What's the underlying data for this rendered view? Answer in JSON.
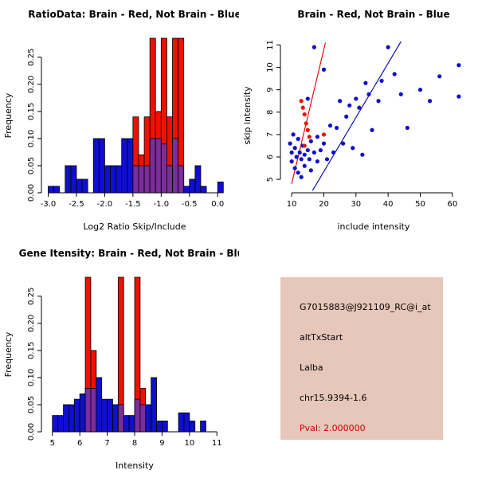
{
  "figure": {
    "background": "#FFFFFF"
  },
  "chart_data": [
    {
      "type": "bar",
      "title": "RatioData: Brain - Red, Not Brain - Blue",
      "xlabel": "Log2 Ratio Skip/Include",
      "ylabel": "Frequency",
      "xlim": [
        -3.12,
        0.18
      ],
      "ylim": [
        0,
        0.285
      ],
      "xticks": [
        -3.0,
        -2.5,
        -2.0,
        -1.5,
        -1.0,
        -0.5,
        0.0
      ],
      "xtick_labels": [
        "-3.0",
        "-2.5",
        "-2.0",
        "-1.5",
        "-1.0",
        "-0.5",
        "0.0"
      ],
      "yticks": [
        0,
        0.05,
        0.1,
        0.15,
        0.2,
        0.25
      ],
      "ytick_labels": [
        "0.00",
        "0.05",
        "0.10",
        "0.15",
        "0.20",
        "0.25"
      ],
      "bin_width": 0.1,
      "legend_note": "Brain = red, Not Brain = blue, overlap = purple",
      "blue_bins": [
        [
          -3.0,
          0.012
        ],
        [
          -2.9,
          0.012
        ],
        [
          -2.7,
          0.05
        ],
        [
          -2.6,
          0.05
        ],
        [
          -2.5,
          0.025
        ],
        [
          -2.4,
          0.025
        ],
        [
          -2.2,
          0.1
        ],
        [
          -2.1,
          0.1
        ],
        [
          -2.0,
          0.05
        ],
        [
          -1.9,
          0.05
        ],
        [
          -1.8,
          0.05
        ],
        [
          -1.7,
          0.1
        ],
        [
          -1.6,
          0.1
        ],
        [
          -1.5,
          0.05
        ],
        [
          -1.4,
          0.05
        ],
        [
          -1.3,
          0.05
        ],
        [
          -1.2,
          0.1
        ],
        [
          -1.1,
          0.1
        ],
        [
          -1.0,
          0.09
        ],
        [
          -0.9,
          0.05
        ],
        [
          -0.8,
          0.1
        ],
        [
          -0.7,
          0.05
        ],
        [
          -0.6,
          0.012
        ],
        [
          -0.5,
          0.025
        ],
        [
          -0.4,
          0.05
        ],
        [
          -0.3,
          0.012
        ],
        [
          0.0,
          0.02
        ]
      ],
      "red_bins": [
        [
          -1.5,
          0.14
        ],
        [
          -1.4,
          0.07
        ],
        [
          -1.3,
          0.14
        ],
        [
          -1.2,
          0.285
        ],
        [
          -1.1,
          0.15
        ],
        [
          -1.0,
          0.285
        ],
        [
          -0.9,
          0.14
        ],
        [
          -0.8,
          0.285
        ],
        [
          -0.7,
          0.285
        ]
      ],
      "colors": {
        "blue": "#0F0FCD",
        "red": "#EE1100",
        "overlap": "#7B2D9B"
      }
    },
    {
      "type": "scatter",
      "title": "Brain - Red, Not Brain - Blue",
      "xlabel": "include intensity",
      "ylabel": "skip intensity",
      "xlim": [
        6.5,
        64.5
      ],
      "ylim": [
        4.4,
        11.3
      ],
      "xticks": [
        10,
        20,
        30,
        40,
        50,
        60
      ],
      "xtick_labels": [
        "10",
        "20",
        "30",
        "40",
        "50",
        "60"
      ],
      "yticks": [
        5,
        6,
        7,
        8,
        9,
        10,
        11
      ],
      "ytick_labels": [
        "5",
        "6",
        "7",
        "8",
        "9",
        "10",
        "11"
      ],
      "points": [
        [
          9.5,
          6.6,
          "b"
        ],
        [
          10,
          6.2,
          "b"
        ],
        [
          10,
          5.8,
          "b"
        ],
        [
          10.5,
          7.0,
          "b"
        ],
        [
          11,
          6.4,
          "b"
        ],
        [
          11,
          5.5,
          "b"
        ],
        [
          11.5,
          6.0,
          "b"
        ],
        [
          12,
          6.8,
          "b"
        ],
        [
          12,
          5.3,
          "b"
        ],
        [
          12.5,
          6.2,
          "b"
        ],
        [
          13,
          5.9,
          "b"
        ],
        [
          13,
          5.1,
          "b"
        ],
        [
          13.5,
          6.5,
          "b"
        ],
        [
          14,
          6.1,
          "b"
        ],
        [
          14,
          5.6,
          "b"
        ],
        [
          15,
          8.6,
          "b"
        ],
        [
          15,
          6.3,
          "b"
        ],
        [
          15.5,
          5.9,
          "b"
        ],
        [
          16,
          6.7,
          "b"
        ],
        [
          16,
          5.4,
          "b"
        ],
        [
          17,
          10.9,
          "b"
        ],
        [
          17,
          6.2,
          "b"
        ],
        [
          18,
          6.9,
          "b"
        ],
        [
          18,
          5.8,
          "b"
        ],
        [
          19,
          6.3,
          "b"
        ],
        [
          20,
          9.9,
          "b"
        ],
        [
          20,
          6.6,
          "b"
        ],
        [
          21,
          5.9,
          "b"
        ],
        [
          22,
          7.4,
          "b"
        ],
        [
          23,
          6.2,
          "b"
        ],
        [
          24,
          7.3,
          "b"
        ],
        [
          25,
          8.5,
          "b"
        ],
        [
          26,
          6.6,
          "b"
        ],
        [
          27,
          7.8,
          "b"
        ],
        [
          28,
          8.3,
          "b"
        ],
        [
          29,
          6.4,
          "b"
        ],
        [
          30,
          8.6,
          "b"
        ],
        [
          31,
          8.2,
          "b"
        ],
        [
          32,
          6.1,
          "b"
        ],
        [
          33,
          9.3,
          "b"
        ],
        [
          34,
          8.8,
          "b"
        ],
        [
          35,
          7.2,
          "b"
        ],
        [
          37,
          8.5,
          "b"
        ],
        [
          38,
          9.4,
          "b"
        ],
        [
          40,
          10.9,
          "b"
        ],
        [
          42,
          9.7,
          "b"
        ],
        [
          44,
          8.8,
          "b"
        ],
        [
          46,
          7.3,
          "b"
        ],
        [
          50,
          9.0,
          "b"
        ],
        [
          53,
          8.5,
          "b"
        ],
        [
          56,
          9.6,
          "b"
        ],
        [
          62,
          10.1,
          "b"
        ],
        [
          62,
          8.7,
          "b"
        ],
        [
          13,
          8.5,
          "r"
        ],
        [
          13.5,
          8.2,
          "r"
        ],
        [
          14,
          7.9,
          "r"
        ],
        [
          14.5,
          7.5,
          "r"
        ],
        [
          15,
          7.2,
          "r"
        ],
        [
          15.5,
          6.9,
          "r"
        ],
        [
          14,
          6.5,
          "r"
        ],
        [
          20,
          7.0,
          "r"
        ]
      ],
      "lines": [
        {
          "x": [
            10,
            20.5
          ],
          "y": [
            4.8,
            11.1
          ],
          "color": "#D40000"
        },
        {
          "x": [
            16.5,
            44
          ],
          "y": [
            4.5,
            11.15
          ],
          "color": "#0000B8"
        }
      ],
      "colors": {
        "blue": "#0F0FCD",
        "red": "#EE1100"
      }
    },
    {
      "type": "bar",
      "title": "Gene Itensity: Brain - Red, Not Brain - Blue",
      "xlabel": "Intensity",
      "ylabel": "Frequency",
      "xlim": [
        4.6,
        11.4
      ],
      "ylim": [
        0,
        0.285
      ],
      "xticks": [
        5,
        6,
        7,
        8,
        9,
        10,
        11
      ],
      "xtick_labels": [
        "5",
        "6",
        "7",
        "8",
        "9",
        "10",
        "11"
      ],
      "yticks": [
        0,
        0.05,
        0.1,
        0.15,
        0.2,
        0.25
      ],
      "ytick_labels": [
        "0.00",
        "0.05",
        "0.10",
        "0.15",
        "0.20",
        "0.25"
      ],
      "bin_width": 0.2,
      "legend_note": "Brain = red, Not Brain = blue, overlap = purple",
      "blue_bins": [
        [
          5.0,
          0.03
        ],
        [
          5.2,
          0.03
        ],
        [
          5.4,
          0.05
        ],
        [
          5.6,
          0.05
        ],
        [
          5.8,
          0.06
        ],
        [
          6.0,
          0.07
        ],
        [
          6.2,
          0.08
        ],
        [
          6.4,
          0.08
        ],
        [
          6.6,
          0.1
        ],
        [
          6.8,
          0.06
        ],
        [
          7.0,
          0.06
        ],
        [
          7.2,
          0.05
        ],
        [
          7.4,
          0.05
        ],
        [
          7.6,
          0.03
        ],
        [
          7.8,
          0.03
        ],
        [
          8.0,
          0.06
        ],
        [
          8.2,
          0.05
        ],
        [
          8.4,
          0.05
        ],
        [
          8.6,
          0.1
        ],
        [
          8.8,
          0.02
        ],
        [
          9.0,
          0.02
        ],
        [
          9.6,
          0.035
        ],
        [
          9.8,
          0.035
        ],
        [
          10.0,
          0.02
        ],
        [
          10.4,
          0.02
        ]
      ],
      "red_bins": [
        [
          6.2,
          0.285
        ],
        [
          6.4,
          0.15
        ],
        [
          7.4,
          0.285
        ],
        [
          8.0,
          0.285
        ],
        [
          8.2,
          0.08
        ]
      ],
      "colors": {
        "blue": "#0F0FCD",
        "red": "#EE1100",
        "overlap": "#7B2D9B"
      }
    }
  ],
  "info_box": {
    "probe_id": "G7015883@J921109_RC@i_at",
    "alt_event": "altTxStart",
    "gene": "Lalba",
    "location": "chr15.9394-1.6",
    "pval": "Pval: 2.000000",
    "bg_color": "#E7C7BA",
    "text_color": "#000000",
    "pval_color": "#CC0000"
  }
}
